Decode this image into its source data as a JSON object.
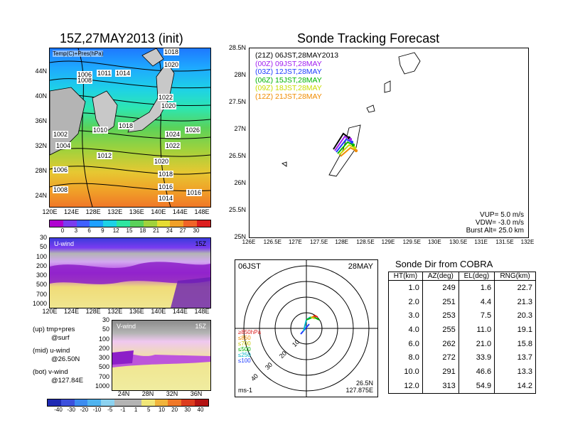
{
  "left_title": "15Z,27MAY2013 (init)",
  "right_title": "Sonde Tracking Forecast",
  "temp_panel": {
    "label": "Temp(C)+Pres(hPa)",
    "y_ticks": [
      "44N",
      "40N",
      "36N",
      "32N",
      "28N",
      "24N"
    ],
    "x_ticks": [
      "120E",
      "124E",
      "128E",
      "132E",
      "136E",
      "140E",
      "144E",
      "148E"
    ],
    "pressure_labels": [
      "1018",
      "1020",
      "1006",
      "1011",
      "1014",
      "1008",
      "1022",
      "1020",
      "1010",
      "1018",
      "1024",
      "1026",
      "1002",
      "1004",
      "1012",
      "1022",
      "1006",
      "1020",
      "1018",
      "1016",
      "1008",
      "1014",
      "1016"
    ],
    "colorbar_ticks": [
      "0",
      "3",
      "6",
      "9",
      "12",
      "15",
      "18",
      "21",
      "24",
      "27",
      "30"
    ],
    "colorbar_colors": [
      "#b000d0",
      "#7a3cf0",
      "#4060ff",
      "#1ea0ff",
      "#1ed2e6",
      "#2ee6a0",
      "#5ad25a",
      "#a0d23c",
      "#e6dc32",
      "#f0a028",
      "#f06428",
      "#dc1e1e"
    ]
  },
  "u_panel": {
    "label": "U-wind",
    "time": "15Z",
    "y_ticks": [
      "30",
      "50",
      "100",
      "200",
      "300",
      "500",
      "700",
      "1000"
    ],
    "x_ticks": [
      "120E",
      "124E",
      "128E",
      "132E",
      "136E",
      "140E",
      "144E",
      "148E"
    ]
  },
  "v_panel": {
    "label": "V-wind",
    "time": "15Z",
    "y_ticks": [
      "30",
      "50",
      "100",
      "200",
      "300",
      "500",
      "700",
      "1000"
    ],
    "x_ticks": [
      "24N",
      "28N",
      "32N",
      "36N"
    ]
  },
  "notes": {
    "line1": "(up) tmp+pres",
    "line1b": "@surf",
    "line2": "(mid) u-wind",
    "line2b": "@26.50N",
    "line3": "(bot) v-wind",
    "line3b": "@127.84E"
  },
  "wind_colorbar_ticks": [
    "-40",
    "-30",
    "-20",
    "-10",
    "-5",
    "-1",
    "1",
    "5",
    "10",
    "20",
    "30",
    "40"
  ],
  "wind_colorbar_colors": [
    "#1e2ab4",
    "#3c50dc",
    "#3c8cf0",
    "#50b4f0",
    "#8cd2f0",
    "#b4b4b4",
    "#b4b4b4",
    "#f0e678",
    "#f0b43c",
    "#f07828",
    "#dc3c1e",
    "#b41414"
  ],
  "tracking_map": {
    "y_ticks": [
      "28.5N",
      "28N",
      "27.5N",
      "27N",
      "26.5N",
      "26N",
      "25.5N",
      "25N"
    ],
    "x_ticks": [
      "126E",
      "126.5E",
      "127E",
      "127.5E",
      "128E",
      "128.5E",
      "129E",
      "129.5E",
      "130E",
      "130.5E",
      "131E",
      "131.5E",
      "132E"
    ],
    "legend": [
      {
        "text": "(21Z)  06JST,28MAY2013",
        "color": "#000000"
      },
      {
        "text": "(00Z)  09JST,28MAY",
        "color": "#a020f0"
      },
      {
        "text": "(03Z)  12JST,28MAY",
        "color": "#1e3cff"
      },
      {
        "text": "(06Z)  15JST,28MAY",
        "color": "#00b400"
      },
      {
        "text": "(09Z)  18JST,28MAY",
        "color": "#c8dc00"
      },
      {
        "text": "(12Z)  21JST,28MAY",
        "color": "#f08c00"
      }
    ],
    "vup": "VUP=  5.0  m/s",
    "vdw": "VDW= -3.0  m/s",
    "burst": "Burst Alt=  25.0  km"
  },
  "polar": {
    "time": "06JST",
    "date": "28MAY",
    "ring_labels": [
      "10",
      "20",
      "30",
      "40"
    ],
    "height_legend": [
      {
        "text": "≥850hPa",
        "color": "#dc1e1e"
      },
      {
        "text": "≤850",
        "color": "#f08c00"
      },
      {
        "text": "≤700",
        "color": "#c8c800"
      },
      {
        "text": "≤500",
        "color": "#00b400"
      },
      {
        "text": "≤250",
        "color": "#00b4c8"
      },
      {
        "text": "≤100",
        "color": "#1e3cff"
      }
    ],
    "unit": "ms-1",
    "lat": "26.5N",
    "lon": "127.875E"
  },
  "cobra": {
    "title": "Sonde Dir from COBRA",
    "headers": [
      "HT(km)",
      "AZ(deg)",
      "EL(deg)",
      "RNG(km)"
    ],
    "rows": [
      [
        "1.0",
        "249",
        "1.6",
        "22.7"
      ],
      [
        "2.0",
        "251",
        "4.4",
        "21.3"
      ],
      [
        "3.0",
        "253",
        "7.5",
        "20.3"
      ],
      [
        "4.0",
        "255",
        "11.0",
        "19.1"
      ],
      [
        "6.0",
        "262",
        "21.0",
        "15.8"
      ],
      [
        "8.0",
        "272",
        "33.9",
        "13.7"
      ],
      [
        "10.0",
        "291",
        "46.6",
        "13.3"
      ],
      [
        "12.0",
        "313",
        "54.9",
        "14.2"
      ]
    ]
  }
}
